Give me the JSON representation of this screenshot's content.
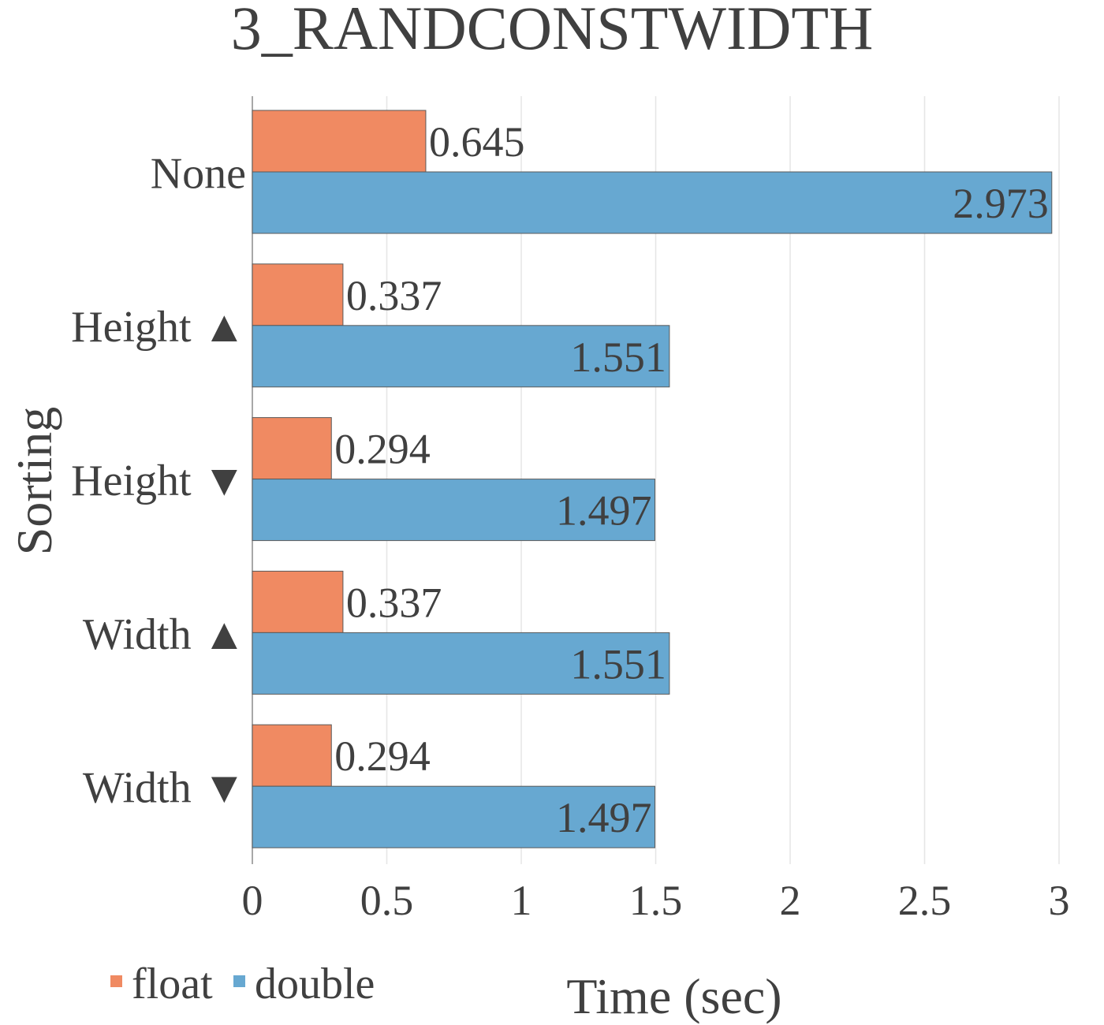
{
  "chart_data": {
    "type": "bar",
    "orientation": "horizontal",
    "title": "3_RANDCONSTWIDTH",
    "xlabel": "Time (sec)",
    "ylabel": "Sorting",
    "categories": [
      "None",
      "Height ▲",
      "Height ▼",
      "Width ▲",
      "Width ▼"
    ],
    "series": [
      {
        "name": "float",
        "color": "#F08A62",
        "values": [
          0.645,
          0.337,
          0.294,
          0.337,
          0.294
        ]
      },
      {
        "name": "double",
        "color": "#67A8D1",
        "values": [
          2.973,
          1.551,
          1.497,
          1.551,
          1.497
        ]
      }
    ],
    "data_labels": [
      [
        "0.645",
        "0.337",
        "0.294",
        "0.337",
        "0.294"
      ],
      [
        "2.973",
        "1.551",
        "1.497",
        "1.551",
        "1.497"
      ]
    ],
    "xlim": [
      0,
      3
    ],
    "xticks": [
      0,
      0.5,
      1,
      1.5,
      2,
      2.5,
      3
    ],
    "xtick_labels": [
      "0",
      "0.5",
      "1",
      "1.5",
      "2",
      "2.5",
      "3"
    ],
    "grid": "vertical",
    "legend": "bottom-left"
  }
}
